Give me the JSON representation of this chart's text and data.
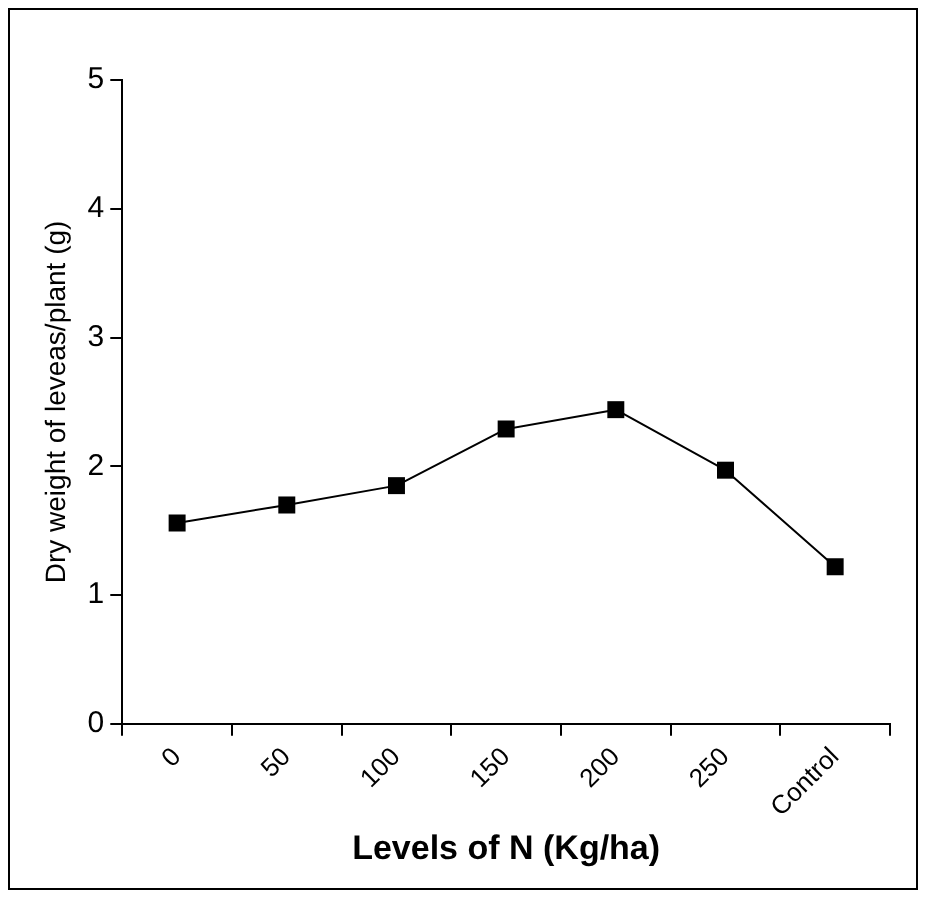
{
  "chart_data": {
    "type": "line",
    "xlabel": "Levels of N (Kg/ha)",
    "ylabel": "Dry weight of leveas/plant (g)",
    "categories": [
      "0",
      "50",
      "100",
      "150",
      "200",
      "250",
      "Control"
    ],
    "series": [
      {
        "color": "#000000",
        "values": [
          1.56,
          1.7,
          1.85,
          2.29,
          2.44,
          1.97,
          1.22
        ]
      }
    ],
    "ylim": [
      0,
      5
    ],
    "yticks": [
      0,
      1,
      2,
      3,
      4,
      5
    ],
    "grid": false,
    "legend": false,
    "marker": "square",
    "line_style": "solid"
  }
}
